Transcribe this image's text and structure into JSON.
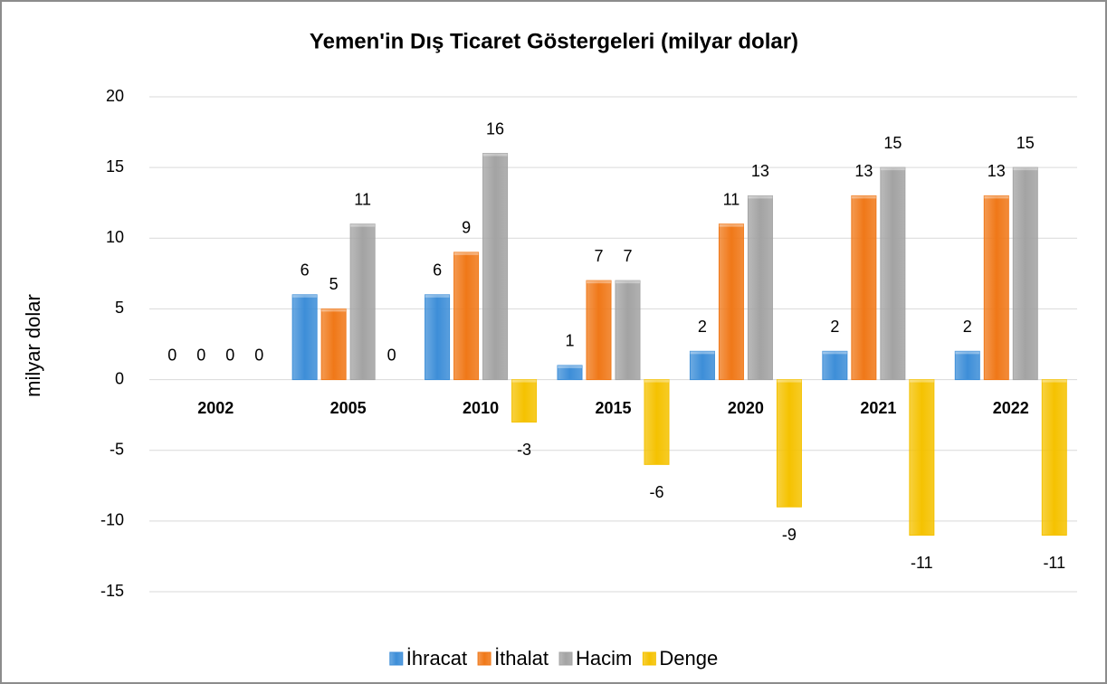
{
  "chart_data": {
    "type": "bar",
    "title": "Yemen'in Dış Ticaret Göstergeleri  (milyar dolar)",
    "y_label": "milyar dolar",
    "categories": [
      "2002",
      "2005",
      "2010",
      "2015",
      "2020",
      "2021",
      "2022"
    ],
    "series": [
      {
        "name": "İhracat",
        "color": "#3d8ed8",
        "values": [
          0,
          6,
          6,
          1,
          2,
          2,
          2
        ]
      },
      {
        "name": "İthalat",
        "color": "#f07818",
        "values": [
          0,
          5,
          9,
          7,
          11,
          13,
          13
        ]
      },
      {
        "name": "Hacim",
        "color": "#a3a3a3",
        "values": [
          0,
          11,
          16,
          7,
          13,
          15,
          15
        ]
      },
      {
        "name": "Denge",
        "color": "#f5c200",
        "values": [
          0,
          0,
          -3,
          -6,
          -9,
          -11,
          -11
        ]
      }
    ],
    "ylim": [
      -15,
      20
    ],
    "yticks": [
      -15,
      -10,
      -5,
      0,
      5,
      10,
      15,
      20
    ],
    "grid": true,
    "legend": "bottom"
  }
}
